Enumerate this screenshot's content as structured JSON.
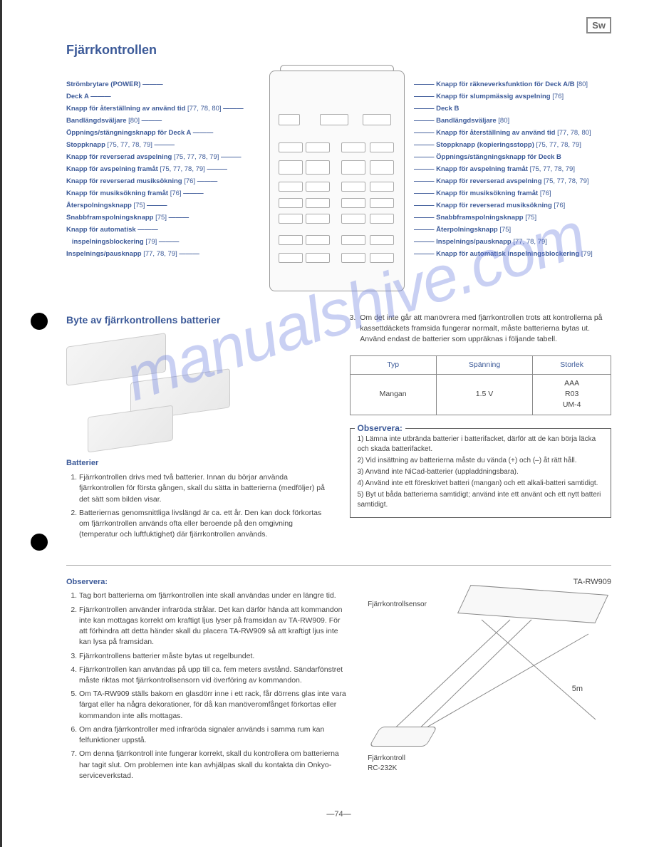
{
  "lang_badge": "Sw",
  "page_title": "Fjärrkontrollen",
  "watermark": "manualshive.com",
  "page_number": "—74—",
  "remote": {
    "left_labels": [
      {
        "text": "Strömbrytare (POWER)",
        "ref": ""
      },
      {
        "text": "Deck A",
        "ref": ""
      },
      {
        "text": "Knapp för återställning av använd tid",
        "ref": "[77, 78, 80]"
      },
      {
        "text": "Bandlängdsväljare",
        "ref": "[80]"
      },
      {
        "text": "Öppnings/stängningsknapp för Deck A",
        "ref": ""
      },
      {
        "text": "Stoppknapp",
        "ref": "[75, 77, 78, 79]"
      },
      {
        "text": "Knapp för reverserad avspelning",
        "ref": "[75, 77, 78, 79]"
      },
      {
        "text": "Knapp för avspelning framåt",
        "ref": "[75, 77, 78, 79]"
      },
      {
        "text": "Knapp för reverserad musiksökning",
        "ref": "[76]"
      },
      {
        "text": "Knapp för musiksökning framåt",
        "ref": "[76]"
      },
      {
        "text": "Återspolningsknapp",
        "ref": "[75]"
      },
      {
        "text": "Snabbframspolningsknapp",
        "ref": "[75]"
      },
      {
        "text": "Knapp för automatisk",
        "ref": ""
      },
      {
        "text": "   inspelningsblockering",
        "ref": "[79]"
      },
      {
        "text": "Inspelnings/pausknapp",
        "ref": "[77, 78, 79]"
      }
    ],
    "right_labels": [
      {
        "text": "Knapp för räkneverksfunktion för Deck A/B",
        "ref": "[80]"
      },
      {
        "text": "Knapp för slumpmässig avspelning",
        "ref": "[76]"
      },
      {
        "text": "Deck B",
        "ref": ""
      },
      {
        "text": "Bandlängdsväljare",
        "ref": "[80]"
      },
      {
        "text": "Knapp för återställning av använd tid",
        "ref": "[77, 78, 80]"
      },
      {
        "text": "Stoppknapp (kopieringsstopp)",
        "ref": "[75, 77, 78, 79]"
      },
      {
        "text": "Öppnings/stängningsknapp för Deck B",
        "ref": ""
      },
      {
        "text": "Knapp för avspelning framåt",
        "ref": "[75, 77, 78, 79]"
      },
      {
        "text": "Knapp för reverserad avspelning",
        "ref": "[75, 77, 78, 79]"
      },
      {
        "text": "Knapp för musiksökning framåt",
        "ref": "[76]"
      },
      {
        "text": "Knapp för reverserad musiksökning",
        "ref": "[76]"
      },
      {
        "text": "Snabbframspolningsknapp",
        "ref": "[75]"
      },
      {
        "text": "Återpolningsknapp",
        "ref": "[75]"
      },
      {
        "text": "Inspelnings/pausknapp",
        "ref": "[77, 78, 79]"
      },
      {
        "text": "Knapp för automatisk inspelningsblockering",
        "ref": "[79]"
      }
    ]
  },
  "battery_section": {
    "title": "Byte av fjärrkontrollens batterier",
    "sub": "Batterier",
    "list": [
      "Fjärrkontrollen drivs med två batterier. Innan du börjar använda fjärrkontrollen för första gången, skall du sätta in batterierna (medföljer) på det sätt som bilden visar.",
      "Batteriernas genomsnittliga livslängd är ca. ett år. Den kan dock förkortas om fjärrkontrollen används ofta eller beroende på den omgivning (temperatur och luftfuktighet) där fjärrkontrollen används."
    ]
  },
  "right_col": {
    "item3": "Om det inte går att manövrera med fjärrkontrollen trots att kontrollerna på kassettdäckets framsida fungerar normalt, måste batterierna bytas ut. Använd endast de batterier som uppräknas i följande tabell.",
    "item3_num": "3."
  },
  "battery_table": {
    "headers": [
      "Typ",
      "Spänning",
      "Storlek"
    ],
    "row": [
      "Mangan",
      "1.5 V",
      "AAA\nR03\nUM-4"
    ]
  },
  "observera_box": {
    "title": "Observera:",
    "items": [
      "1) Lämna inte utbrända batterier i batterifacket, därför att de kan börja läcka och skada batterifacket.",
      "2) Vid insättning av batterierna måste du vända (+) och (–) åt rätt håll.",
      "3) Använd inte NiCad-batterier (uppladdningsbara).",
      "4) Använd inte ett föreskrivet batteri (mangan) och ett alkali-batteri samtidigt.",
      "5) Byt ut båda batterierna samtidigt; använd inte ett använt och ett nytt batteri samtidigt."
    ]
  },
  "observera2": {
    "title": "Observera:",
    "items": [
      "Tag bort batterierna om fjärrkontrollen inte skall användas under en längre tid.",
      "Fjärrkontrollen använder infraröda strålar. Det kan därför hända att kommandon inte kan mottagas korrekt om kraftigt ljus lyser på framsidan av TA-RW909. För att förhindra att detta händer skall du placera TA-RW909 så att kraftigt ljus inte kan lysa på framsidan.",
      "Fjärrkontrollens batterier måste bytas ut regelbundet.",
      "Fjärrkontrollen kan användas på upp till ca. fem meters avstånd. Sändarfönstret måste riktas mot fjärrkontrollsensorn vid överföring av kommandon.",
      "Om TA-RW909 ställs bakom en glasdörr inne i ett rack, får dörrens glas inte vara färgat eller ha några dekorationer, för då kan manöveromfånget förkortas eller kommandon inte alls mottagas.",
      "Om andra fjärrkontroller med infraröda signaler används i samma rum kan felfunktioner uppstå.",
      "Om denna fjärrkontroll inte fungerar korrekt, skall du kontrollera om batterierna har tagit slut. Om problemen inte kan avhjälpas skall du kontakta din Onkyo-serviceverkstad."
    ]
  },
  "device": {
    "model": "TA-RW909",
    "sensor_label": "Fjärrkontrollsensor",
    "distance": "5m",
    "remote_label": "Fjärrkontroll",
    "remote_model": "RC-232K"
  }
}
